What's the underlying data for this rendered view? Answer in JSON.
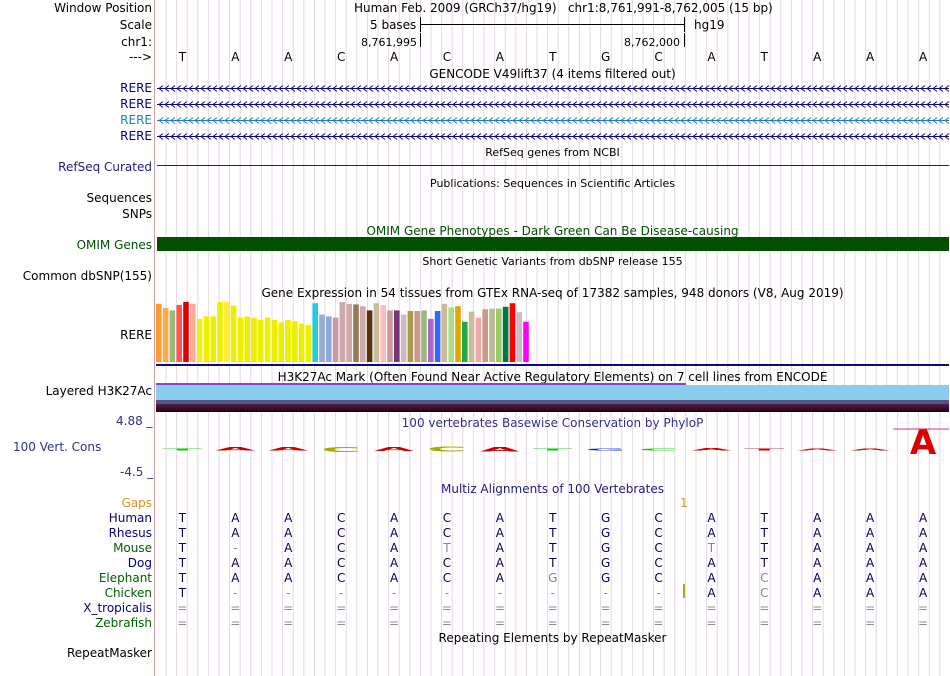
{
  "header": {
    "window_position_label": "Window Position",
    "scale_label": "Scale",
    "chrom_label": "chr1:",
    "arrow_label": "--->",
    "assembly_text": "Human Feb. 2009 (GRCh37/hg19)   chr1:8,761,991-8,762,005 (15 bp)",
    "scale_text": "5 bases",
    "db_text": "hg19",
    "coord_left": "8,761,995",
    "coord_right": "8,762,000"
  },
  "sequence": [
    "T",
    "A",
    "A",
    "C",
    "A",
    "C",
    "A",
    "T",
    "G",
    "C",
    "A",
    "T",
    "A",
    "A",
    "A"
  ],
  "gencode": {
    "title": "GENCODE V49lift37 (4 items filtered out)",
    "genes": [
      {
        "label": "RERE",
        "color": "#0c0c78"
      },
      {
        "label": "RERE",
        "color": "#0c0c78"
      },
      {
        "label": "RERE",
        "color": "#1a80b8"
      },
      {
        "label": "RERE",
        "color": "#0c0c78"
      }
    ]
  },
  "refseq": {
    "title": "RefSeq genes from NCBI",
    "label": "RefSeq Curated"
  },
  "publications": {
    "title": "Publications: Sequences in Scientific Articles",
    "label_1": "Sequences",
    "label_2": "SNPs"
  },
  "omim": {
    "title": "OMIM Gene Phenotypes - Dark Green Can Be Disease-causing",
    "label": "OMIM Genes",
    "color": "#005000"
  },
  "dbsnp": {
    "title": "Short Genetic Variants from dbSNP release 155",
    "label": "Common dbSNP(155)"
  },
  "gtex": {
    "title": "Gene Expression in 54 tissues from GTEx RNA-seq of 17382 samples, 948 donors (V8, Aug 2019)",
    "label": "RERE",
    "chart_data": {
      "type": "bar",
      "values": [
        0.97,
        0.9,
        0.86,
        0.95,
        1.0,
        0.97,
        0.72,
        0.76,
        0.76,
        1.0,
        1.0,
        0.94,
        0.74,
        0.76,
        0.74,
        0.7,
        0.74,
        0.7,
        0.66,
        0.7,
        0.68,
        0.64,
        0.62,
        0.98,
        0.79,
        0.76,
        0.74,
        1.0,
        0.97,
        0.96,
        0.93,
        0.86,
        0.98,
        0.95,
        0.86,
        0.86,
        0.79,
        0.85,
        0.85,
        0.86,
        0.72,
        0.85,
        0.97,
        0.91,
        0.93,
        0.67,
        0.84,
        0.74,
        0.88,
        0.89,
        0.89,
        0.92,
        0.98,
        0.83,
        0.67
      ],
      "colors": [
        "#ff9933",
        "#ffaa44",
        "#99bb77",
        "#ff5555",
        "#dd0000",
        "#ffaa99",
        "#eeee22",
        "#eeee00",
        "#eeee00",
        "#eeee00",
        "#ffee33",
        "#eeee00",
        "#eeee00",
        "#eeee00",
        "#eeee00",
        "#eeee00",
        "#eeee00",
        "#eeee00",
        "#eeee00",
        "#eeee00",
        "#eeee00",
        "#eeee00",
        "#eeee00",
        "#22ccdd",
        "#99aacc",
        "#88aadd",
        "#cc99aa",
        "#ccaaaa",
        "#ccaaaa",
        "#997755",
        "#ccaaaa",
        "#553311",
        "#ccbb99",
        "#ffbbbb",
        "#cc9999",
        "#773377",
        "#ccbbbb",
        "#aa9955",
        "#cc9988",
        "#99bb77",
        "#aa66cc",
        "#3366ff",
        "#ccbb99",
        "#aadd88",
        "#ddaa00",
        "#22aa44",
        "#ccbb99",
        "#eeaaaa",
        "#cc9988",
        "#bbbb99",
        "#99cc66",
        "#007744",
        "#ff0000",
        "#ccbbcc",
        "#ff00ff"
      ]
    }
  },
  "h3k27ac": {
    "title": "H3K27Ac Mark (Often Found Near Active Regulatory Elements) on 7 cell lines from ENCODE",
    "label": "Layered H3K27Ac"
  },
  "conservation": {
    "title": "100 vertebrates Basewise Conservation by PhyloP",
    "label": "100 Vert. Cons",
    "y_max": "4.88 _",
    "y_min": "-4.5 _",
    "chart_data": {
      "type": "bar",
      "ylim": [
        -4.5,
        4.88
      ],
      "values": [
        0.6,
        -1.0,
        -1.0,
        -1.6,
        -1.2,
        -1.5,
        -1.3,
        -0.1,
        -0.1,
        -0.3,
        -0.7,
        0.0,
        0.0,
        -0.2,
        4.6
      ],
      "colors": [
        "#00cc00",
        "#cc0000",
        "#cc0000",
        "#aaaa00",
        "#cc0000",
        "#aaaa00",
        "#cc0000",
        "#00cc00",
        "#0033cc",
        "#00cc00",
        "#cc0000",
        "#cc0000",
        "#cc0000",
        "#cc0000",
        "#dd0000"
      ]
    }
  },
  "multiz": {
    "title": "Multiz Alignments of 100 Vertebrates",
    "gaps_label": "Gaps",
    "gap_marker": "1",
    "species": [
      {
        "name": "Human",
        "color": "#000080",
        "bases": [
          "T",
          "A",
          "A",
          "C",
          "A",
          "C",
          "A",
          "T",
          "G",
          "C",
          "A",
          "T",
          "A",
          "A",
          "A"
        ]
      },
      {
        "name": "Rhesus",
        "color": "#000080",
        "bases": [
          "T",
          "A",
          "A",
          "C",
          "A",
          "C",
          "A",
          "T",
          "G",
          "C",
          "A",
          "T",
          "A",
          "A",
          "A"
        ]
      },
      {
        "name": "Mouse",
        "color": "#006000",
        "bases": [
          "T",
          "-",
          "A",
          "C",
          "A",
          "T",
          "A",
          "T",
          "G",
          "C",
          "T",
          "T",
          "A",
          "A",
          "A"
        ]
      },
      {
        "name": "Dog",
        "color": "#000080",
        "bases": [
          "T",
          "A",
          "A",
          "C",
          "A",
          "C",
          "A",
          "T",
          "G",
          "C",
          "A",
          "T",
          "A",
          "A",
          "A"
        ]
      },
      {
        "name": "Elephant",
        "color": "#006000",
        "bases": [
          "T",
          "A",
          "A",
          "C",
          "A",
          "C",
          "A",
          "G",
          "G",
          "C",
          "A",
          "C",
          "A",
          "A",
          "A"
        ]
      },
      {
        "name": "Chicken",
        "color": "#006000",
        "bases": [
          "T",
          "-",
          "-",
          "-",
          "-",
          "-",
          "-",
          "-",
          "-",
          "-",
          "A",
          "C",
          "A",
          "A",
          "A"
        ]
      },
      {
        "name": "X_tropicalis",
        "color": "#000080",
        "bases": [
          "=",
          "=",
          "=",
          "=",
          "=",
          "=",
          "=",
          "=",
          "=",
          "=",
          "=",
          "=",
          "=",
          "=",
          "="
        ]
      },
      {
        "name": "Zebrafish",
        "color": "#006000",
        "bases": [
          "=",
          "=",
          "=",
          "=",
          "=",
          "=",
          "=",
          "=",
          "=",
          "=",
          "=",
          "=",
          "=",
          "=",
          "="
        ]
      }
    ]
  },
  "repeatmasker": {
    "title": "Repeating Elements by RepeatMasker",
    "label": "RepeatMasker"
  }
}
